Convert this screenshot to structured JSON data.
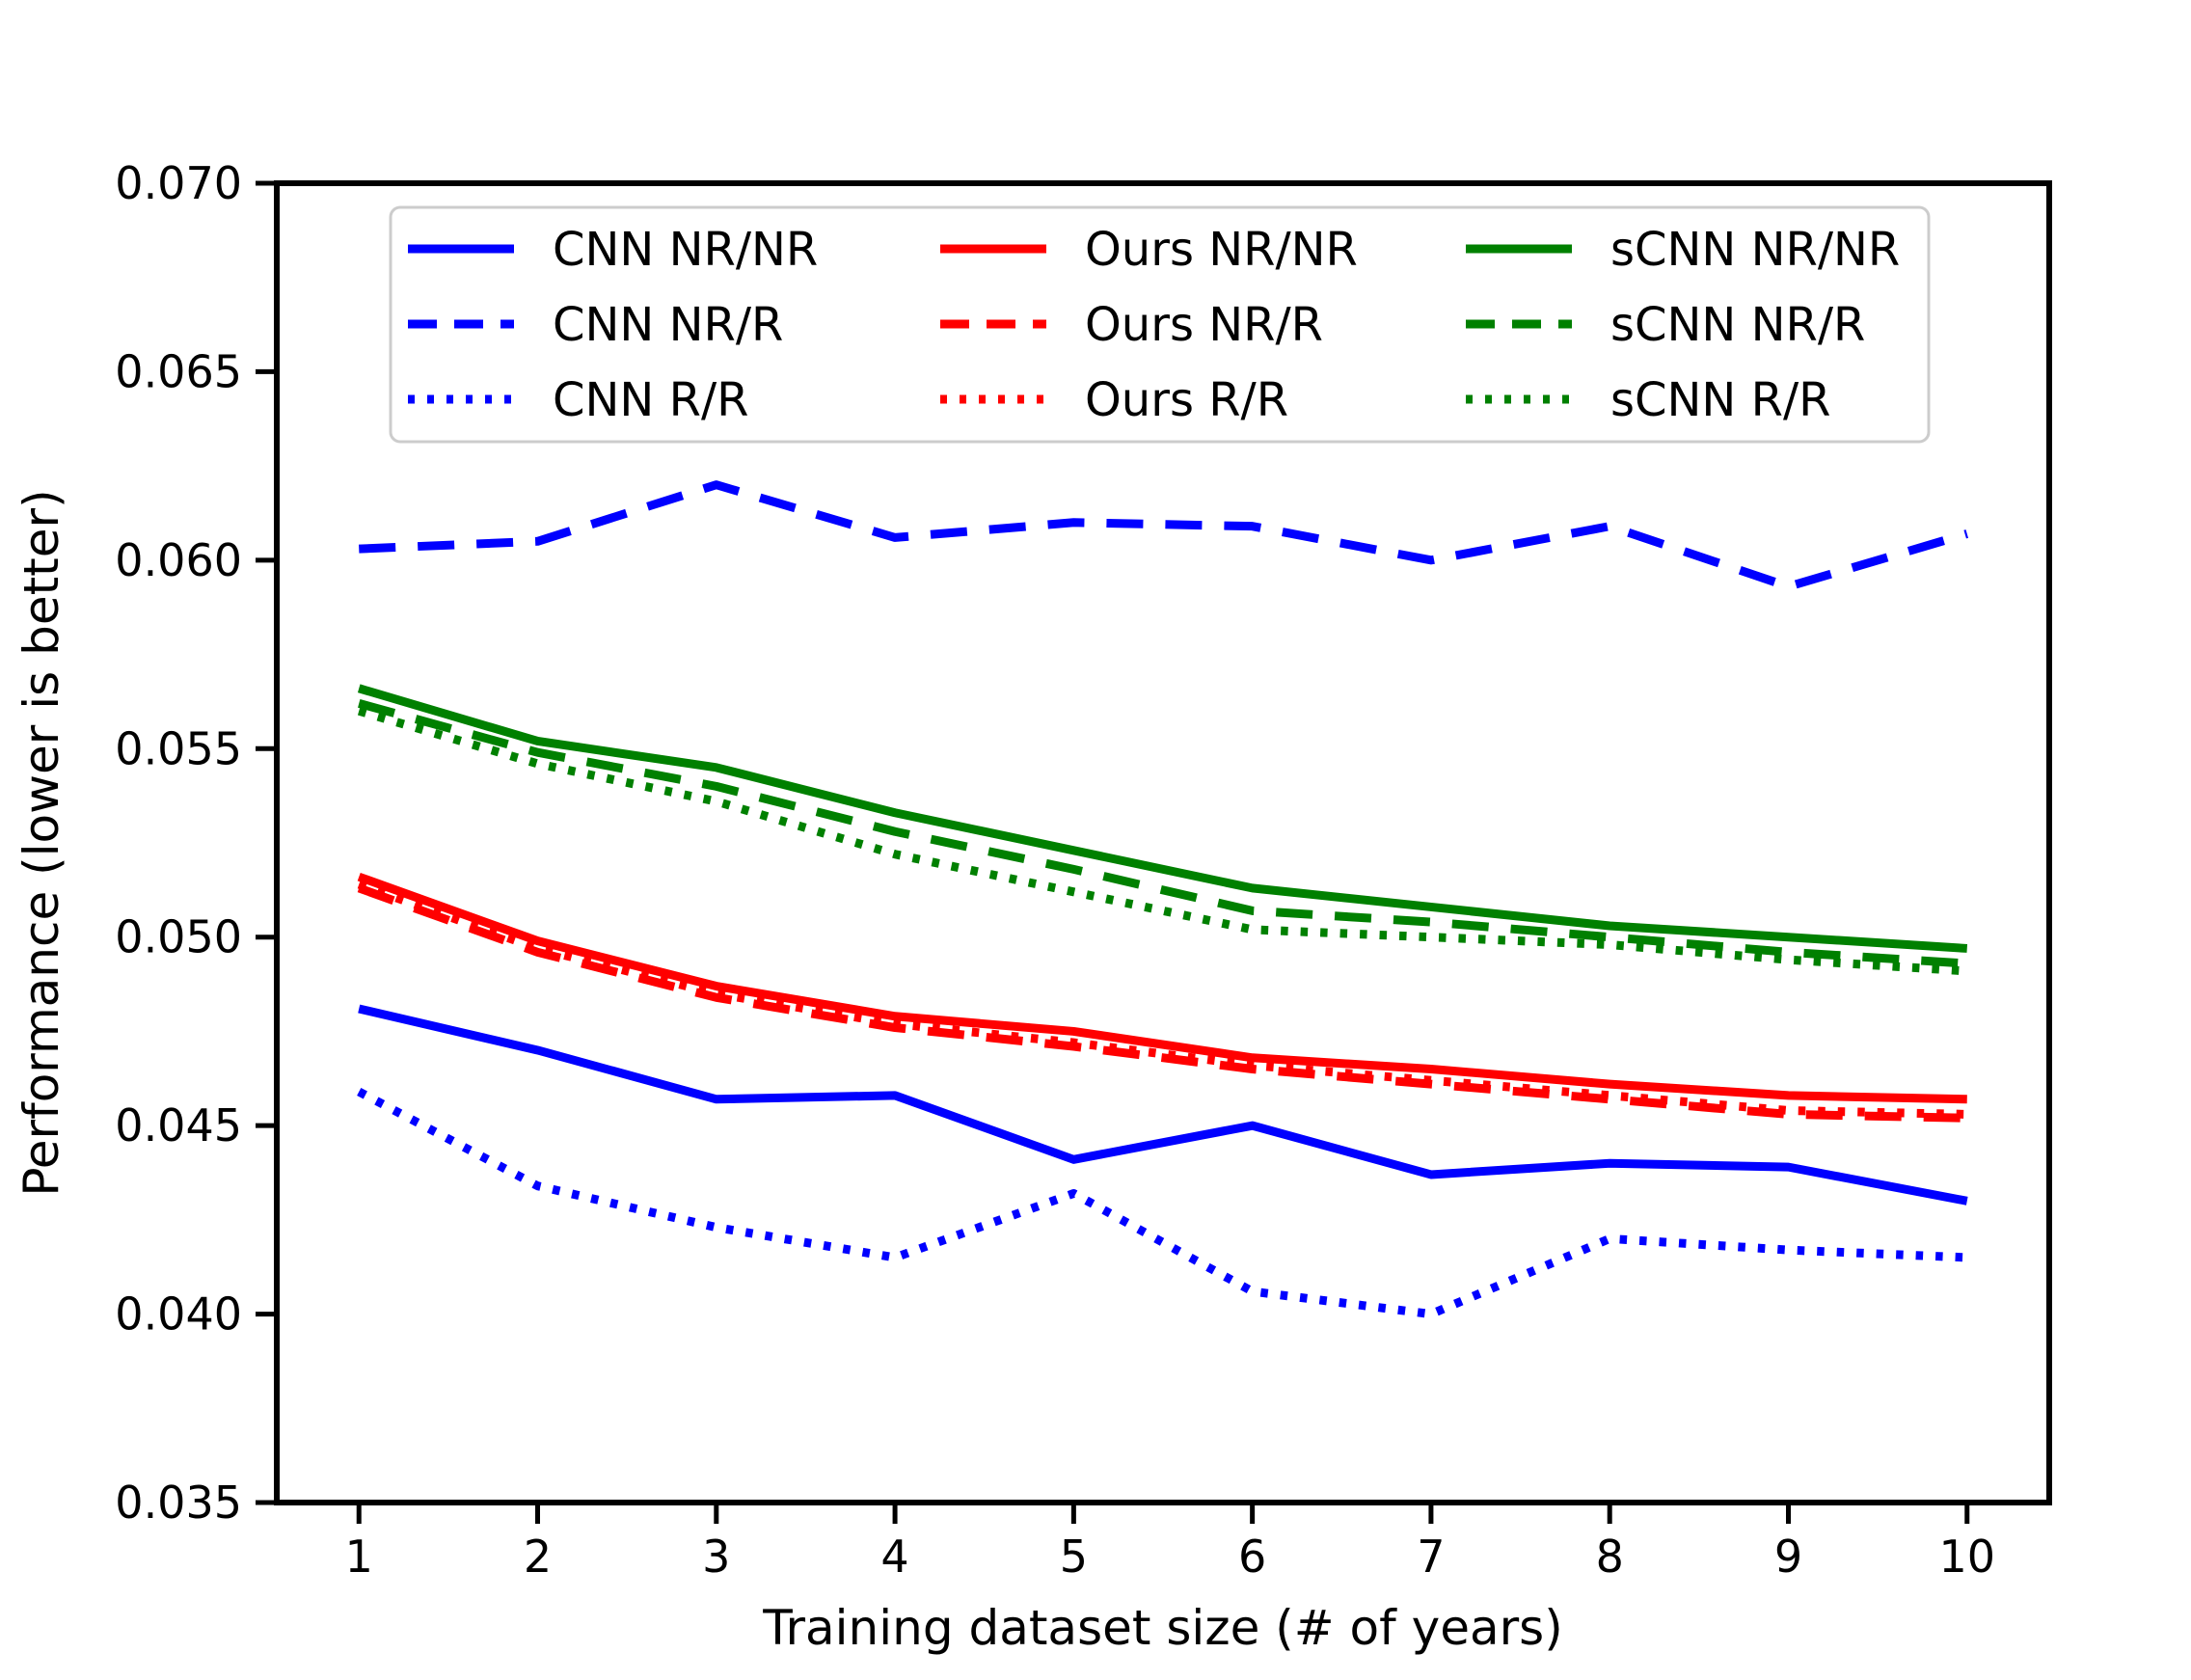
{
  "chart_data": {
    "type": "line",
    "title": "",
    "xlabel": "Training dataset size (# of years)",
    "ylabel": "Performance (lower is better)",
    "x": [
      1,
      2,
      3,
      4,
      5,
      6,
      7,
      8,
      9,
      10
    ],
    "x_tick_labels": [
      "1",
      "2",
      "3",
      "4",
      "5",
      "6",
      "7",
      "8",
      "9",
      "10"
    ],
    "y_ticks": [
      0.035,
      0.04,
      0.045,
      0.05,
      0.055,
      0.06,
      0.065,
      0.07
    ],
    "y_tick_labels": [
      "0.035",
      "0.040",
      "0.045",
      "0.050",
      "0.055",
      "0.060",
      "0.065",
      "0.070"
    ],
    "xlim": [
      0.54,
      10.46
    ],
    "ylim": [
      0.035,
      0.07
    ],
    "grid": false,
    "legend_position": "upper left",
    "colors": {
      "cnn": "#0000ff",
      "ours": "#ff0000",
      "scnn": "#008000"
    },
    "series": [
      {
        "name": "CNN NR/NR",
        "color": "#0000ff",
        "style": "solid",
        "values": [
          0.0481,
          0.047,
          0.0457,
          0.0458,
          0.0441,
          0.045,
          0.0437,
          0.044,
          0.0439,
          0.043
        ]
      },
      {
        "name": "CNN NR/R",
        "color": "#0000ff",
        "style": "dashed",
        "values": [
          0.0603,
          0.0605,
          0.062,
          0.0606,
          0.061,
          0.0609,
          0.06,
          0.0609,
          0.0593,
          0.0607
        ]
      },
      {
        "name": "CNN R/R",
        "color": "#0000ff",
        "style": "dotted",
        "values": [
          0.0459,
          0.0434,
          0.0423,
          0.0415,
          0.0432,
          0.0406,
          0.04,
          0.042,
          0.0417,
          0.0415
        ]
      },
      {
        "name": "Ours NR/NR",
        "color": "#ff0000",
        "style": "solid",
        "values": [
          0.0516,
          0.0499,
          0.0487,
          0.0479,
          0.0475,
          0.0468,
          0.0465,
          0.0461,
          0.0458,
          0.0457
        ]
      },
      {
        "name": "Ours NR/R",
        "color": "#ff0000",
        "style": "dashed",
        "values": [
          0.0513,
          0.0496,
          0.0484,
          0.0476,
          0.0471,
          0.0465,
          0.0461,
          0.0457,
          0.0453,
          0.0452
        ]
      },
      {
        "name": "Ours R/R",
        "color": "#ff0000",
        "style": "dotted",
        "values": [
          0.0514,
          0.0497,
          0.0485,
          0.0477,
          0.0472,
          0.0466,
          0.0462,
          0.0458,
          0.0454,
          0.0453
        ]
      },
      {
        "name": "sCNN NR/NR",
        "color": "#008000",
        "style": "solid",
        "values": [
          0.0566,
          0.0552,
          0.0545,
          0.0533,
          0.0523,
          0.0513,
          0.0508,
          0.0503,
          0.05,
          0.0497
        ]
      },
      {
        "name": "sCNN NR/R",
        "color": "#008000",
        "style": "dashed",
        "values": [
          0.0562,
          0.0549,
          0.054,
          0.0528,
          0.0518,
          0.0507,
          0.0504,
          0.05,
          0.0496,
          0.0493
        ]
      },
      {
        "name": "sCNN R/R",
        "color": "#008000",
        "style": "dotted",
        "values": [
          0.056,
          0.0546,
          0.0536,
          0.0522,
          0.0512,
          0.0502,
          0.05,
          0.0498,
          0.0494,
          0.0491
        ]
      }
    ]
  }
}
